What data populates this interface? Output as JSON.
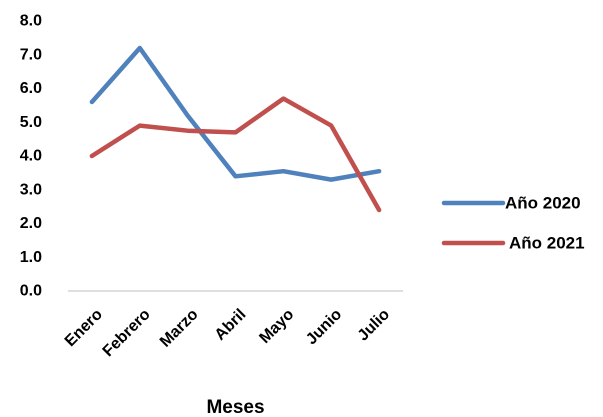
{
  "chart_data": {
    "type": "line",
    "title": "",
    "xlabel": "Meses",
    "ylabel": "",
    "categories": [
      "Enero",
      "Febrero",
      "Marzo",
      "Abril",
      "Mayo",
      "Junio",
      "Julio"
    ],
    "series": [
      {
        "name": "Año 2020",
        "color": "#4F81BD",
        "values": [
          5.6,
          7.2,
          5.2,
          3.4,
          3.55,
          3.3,
          3.55
        ]
      },
      {
        "name": "Año 2021",
        "color": "#C0504D",
        "values": [
          4.0,
          4.9,
          4.75,
          4.7,
          5.7,
          4.9,
          2.4
        ]
      }
    ],
    "ylim": [
      0,
      8
    ],
    "y_ticks": [
      "0.0",
      "1.0",
      "2.0",
      "3.0",
      "4.0",
      "5.0",
      "6.0",
      "7.0",
      "8.0"
    ],
    "grid": false,
    "legend_position": "right"
  }
}
